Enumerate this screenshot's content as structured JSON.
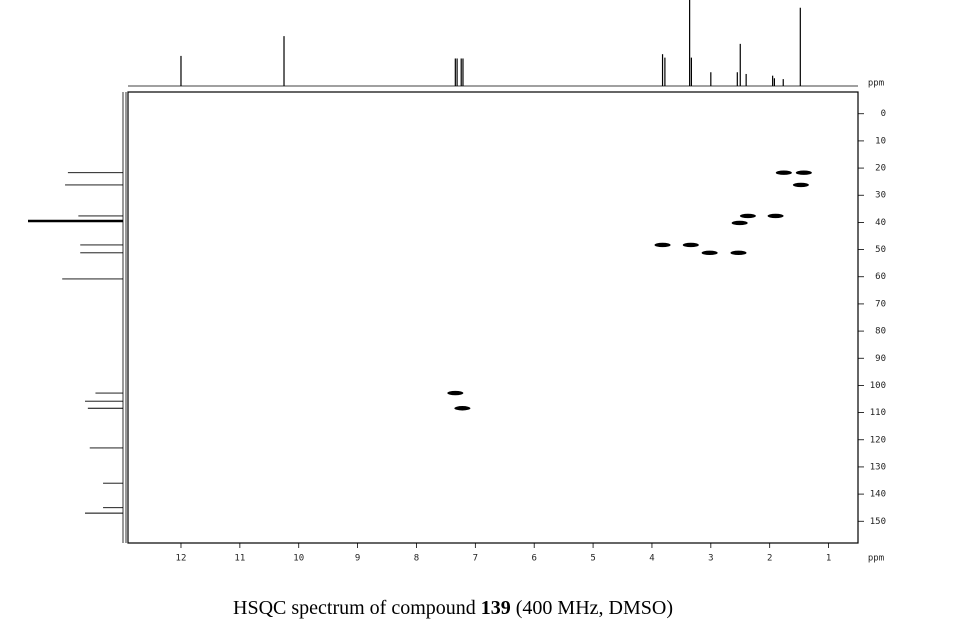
{
  "chart_data": {
    "type": "hsqc",
    "title_parts": [
      "HSQC spectrum of compound ",
      "139",
      " (400 MHz, DMSO)"
    ],
    "x_label": "ppm",
    "y_label": "ppm",
    "color": "#000000",
    "xlim": [
      12.9,
      0.5
    ],
    "ylim": [
      -8,
      158
    ],
    "xticks": [
      12,
      11,
      10,
      9,
      8,
      7,
      6,
      5,
      4,
      3,
      2,
      1
    ],
    "yticks": [
      0,
      10,
      20,
      30,
      40,
      50,
      60,
      70,
      80,
      90,
      100,
      110,
      120,
      130,
      140,
      150
    ],
    "cross_peaks": {
      "x": [
        1.76,
        1.42,
        1.47,
        2.37,
        2.51,
        1.9,
        3.82,
        3.34,
        3.02,
        2.53,
        7.34,
        7.22
      ],
      "y": [
        21.7,
        21.7,
        26.2,
        37.6,
        40.2,
        37.6,
        48.3,
        48.3,
        51.2,
        51.2,
        102.8,
        108.4
      ]
    },
    "f2_projection": {
      "x": [
        12.0,
        10.25,
        7.34,
        7.31,
        7.24,
        7.21,
        3.82,
        3.78,
        3.36,
        3.33,
        3.0,
        2.55,
        2.5,
        2.4,
        1.95,
        1.92,
        1.77,
        1.48
      ],
      "intensity": [
        35,
        58,
        32,
        32,
        32,
        32,
        37,
        33,
        100,
        33,
        16,
        16,
        49,
        14,
        12,
        9,
        8,
        91
      ]
    },
    "f1_projection": {
      "y": [
        21.7,
        26.2,
        37.6,
        39.5,
        48.3,
        51.2,
        60.8,
        102.8,
        105.8,
        108.4,
        123,
        136,
        145,
        147
      ],
      "intensity": [
        58,
        61,
        47,
        100,
        45,
        45,
        64,
        29,
        40,
        37,
        35,
        21,
        21,
        40
      ]
    }
  }
}
